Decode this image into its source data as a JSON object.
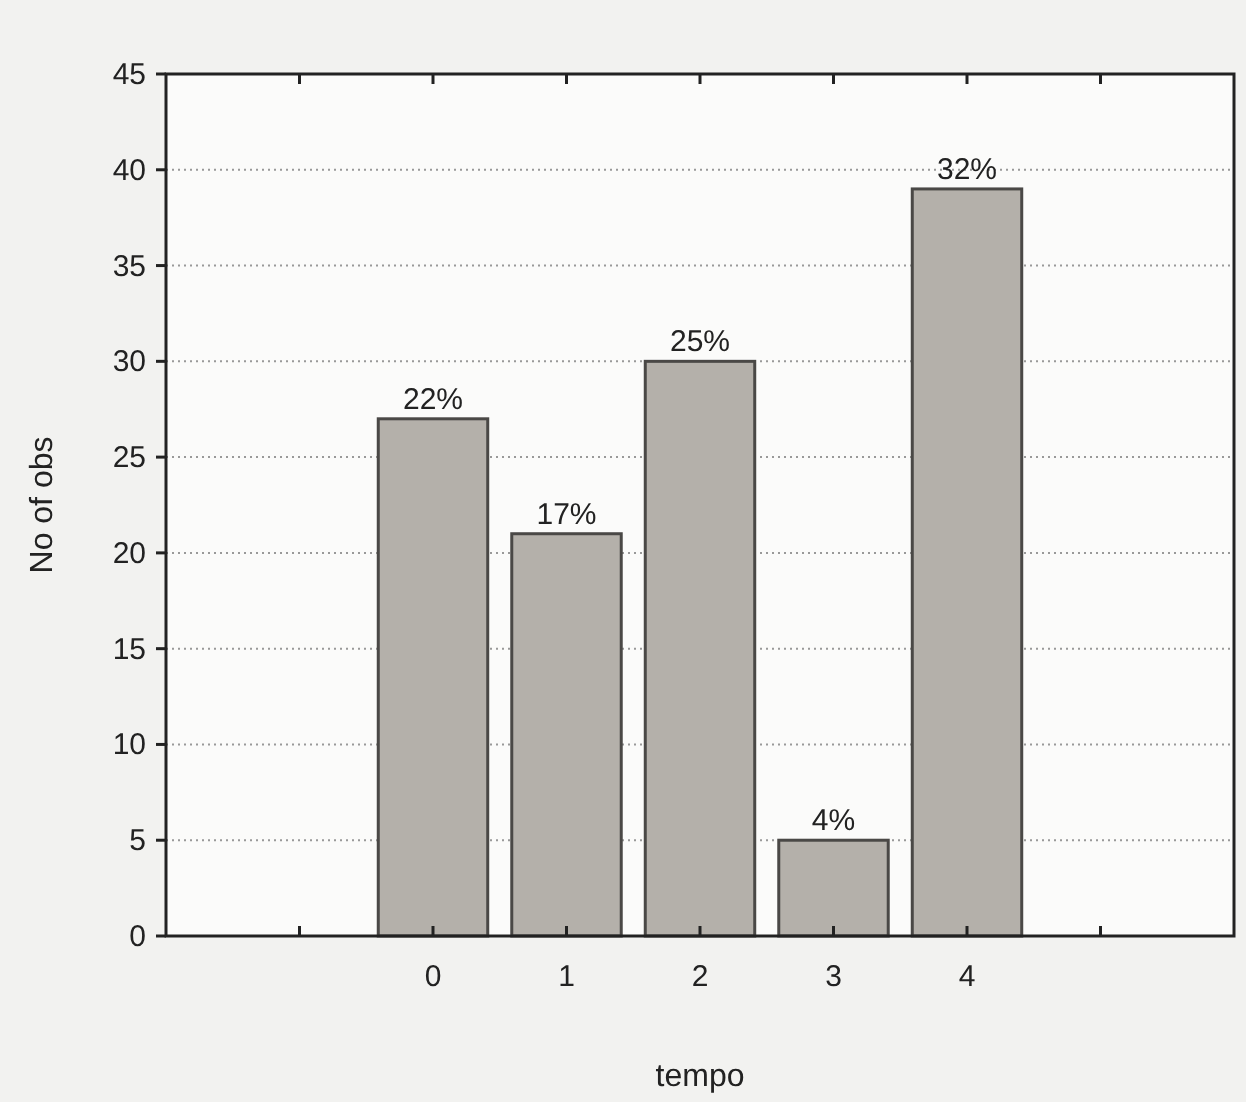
{
  "chart_data": {
    "type": "bar",
    "xlabel": "tempo",
    "ylabel": "No of obs",
    "x": [
      0,
      1,
      2,
      3,
      4
    ],
    "values": [
      27,
      21,
      30,
      5,
      39
    ],
    "annotations": [
      {
        "text": "22%",
        "x": 0,
        "y": 27
      },
      {
        "text": "17%",
        "x": 1,
        "y": 21
      },
      {
        "text": "25%",
        "x": 2,
        "y": 30
      },
      {
        "text": "4%",
        "x": 3,
        "y": 5
      },
      {
        "text": "32%",
        "x": 4,
        "y": 39
      }
    ],
    "color": "#b4b0aa",
    "xlim": [
      -2,
      6
    ],
    "xticks": [
      {
        "value": -1,
        "label": null
      },
      0,
      1,
      2,
      3,
      4,
      {
        "value": 5,
        "label": null
      }
    ],
    "ylim": [
      0,
      45
    ],
    "yticks": [
      0,
      5,
      10,
      15,
      20,
      25,
      30,
      35,
      40,
      45
    ],
    "grid": "y"
  }
}
